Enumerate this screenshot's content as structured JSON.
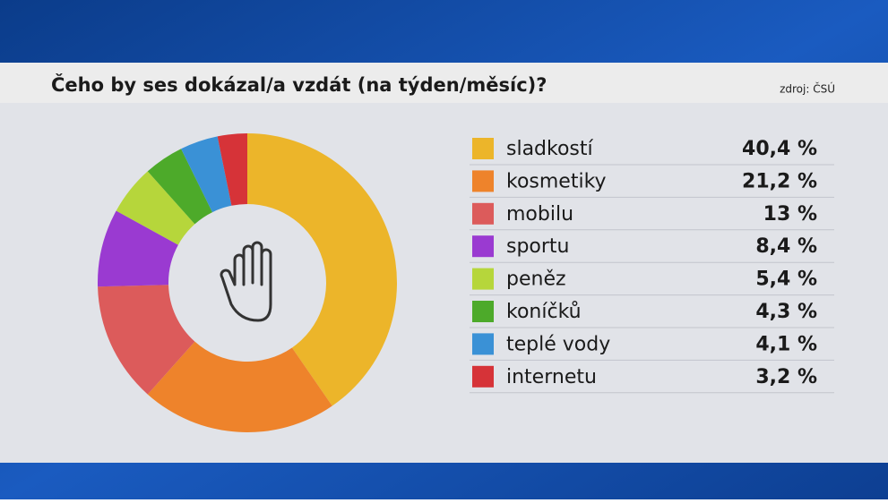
{
  "chart_data": {
    "type": "pie",
    "donut": true,
    "title": "Čeho by ses dokázal/a vzdát (na týden/měsíc)?",
    "source": "zdroj: ČSÚ",
    "categories": [
      "sladkostí",
      "kosmetiky",
      "mobilu",
      "sportu",
      "peněz",
      "koníčků",
      "teplé vody",
      "internetu"
    ],
    "values": [
      40.4,
      21.2,
      13,
      8.4,
      5.4,
      4.3,
      4.1,
      3.2
    ],
    "value_labels": [
      "40,4 %",
      "21,2 %",
      "13 %",
      "8,4 %",
      "5,4 %",
      "4,3 %",
      "4,1 %",
      "3,2 %"
    ],
    "colors": [
      "#ecb52a",
      "#ee832b",
      "#dc5b5b",
      "#9a3ad1",
      "#b6d63b",
      "#4daa2a",
      "#3a91d6",
      "#d63338"
    ]
  }
}
